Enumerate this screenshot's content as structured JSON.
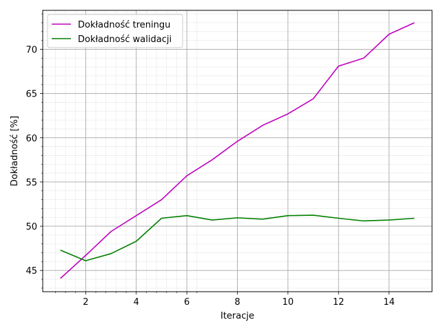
{
  "chart_data": {
    "type": "line",
    "title": "",
    "xlabel": "Iteracje",
    "ylabel": "Dokładność [%]",
    "x": [
      1,
      2,
      3,
      4,
      5,
      6,
      7,
      8,
      9,
      10,
      11,
      12,
      13,
      14,
      15
    ],
    "xlim": [
      0.3,
      15.7
    ],
    "ylim": [
      42.6,
      74.4
    ],
    "xticks": [
      2,
      4,
      6,
      8,
      10,
      12,
      14
    ],
    "yticks": [
      45,
      50,
      55,
      60,
      65,
      70
    ],
    "grid": true,
    "minor_grid": true,
    "legend": "top-left",
    "series": [
      {
        "name": "Dokładność treningu",
        "color": "#bf00bf",
        "values": [
          44.1,
          46.7,
          49.4,
          51.2,
          53.0,
          55.7,
          57.5,
          59.6,
          61.4,
          62.7,
          64.4,
          68.1,
          69.0,
          71.7,
          73.0
        ]
      },
      {
        "name": "Dokładność walidacji",
        "color": "#008000",
        "values": [
          47.3,
          46.1,
          46.9,
          48.3,
          50.9,
          51.2,
          50.7,
          50.95,
          50.8,
          51.2,
          51.25,
          50.9,
          50.6,
          50.7,
          50.9
        ]
      }
    ]
  }
}
